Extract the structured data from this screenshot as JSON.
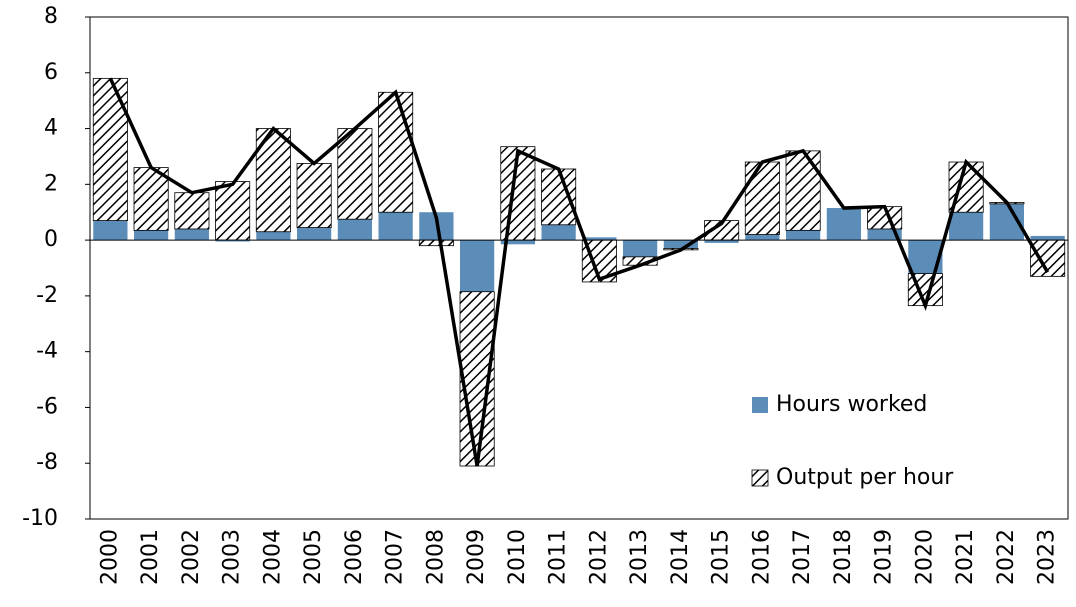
{
  "chart_data": {
    "type": "bar",
    "categories": [
      "2000",
      "2001",
      "2002",
      "2003",
      "2004",
      "2005",
      "2006",
      "2007",
      "2008",
      "2009",
      "2010",
      "2011",
      "2012",
      "2013",
      "2014",
      "2015",
      "2016",
      "2017",
      "2018",
      "2019",
      "2020",
      "2021",
      "2022",
      "2023"
    ],
    "stacked": true,
    "series": [
      {
        "name": "Hours worked",
        "color": "#5b8db8",
        "values": [
          0.7,
          0.35,
          0.4,
          -0.05,
          0.3,
          0.45,
          0.75,
          1.0,
          1.0,
          -1.85,
          -0.15,
          0.55,
          0.1,
          -0.6,
          -0.3,
          -0.1,
          0.2,
          0.35,
          1.15,
          0.4,
          -1.2,
          1.0,
          1.3,
          0.15
        ]
      },
      {
        "name": "Output per hour",
        "color": "#000000",
        "pattern": "hatch",
        "values": [
          5.1,
          2.25,
          1.3,
          2.1,
          3.7,
          2.3,
          3.25,
          4.3,
          -0.2,
          -6.25,
          3.35,
          2.0,
          -1.5,
          -0.3,
          -0.05,
          0.7,
          2.6,
          2.85,
          0,
          0.8,
          -1.15,
          1.8,
          0.05,
          -1.3
        ]
      },
      {
        "type": "line",
        "color": "#000000",
        "values": [
          5.8,
          2.6,
          1.7,
          2.0,
          4.0,
          2.75,
          4.0,
          5.3,
          0.8,
          -8.1,
          3.2,
          2.55,
          -1.4,
          -0.9,
          -0.35,
          0.6,
          2.8,
          3.2,
          1.15,
          1.2,
          -2.35,
          2.8,
          1.35,
          -1.15
        ]
      }
    ],
    "ylim": [
      -10,
      8
    ],
    "yticks": [
      -10,
      -8,
      -6,
      -4,
      -2,
      0,
      2,
      4,
      6,
      8
    ],
    "legend": "lower right"
  }
}
